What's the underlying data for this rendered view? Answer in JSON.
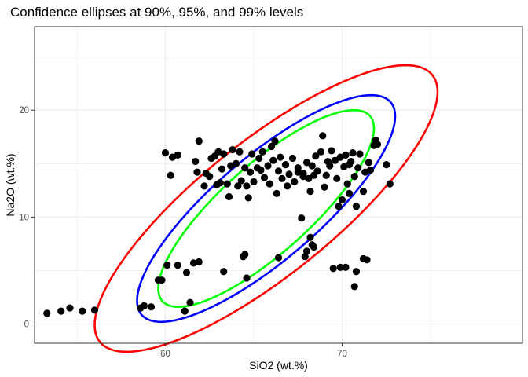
{
  "chart_data": {
    "type": "scatter",
    "title": "Confidence ellipses at 90%, 95%, and 99% levels",
    "xlabel": "SiO2 (wt.%)",
    "ylabel": "Na2O (wt.%)",
    "xlim": [
      52.6,
      80.2
    ],
    "ylim": [
      -1.8,
      27.8
    ],
    "xticks": [
      60,
      70
    ],
    "yticks": [
      0,
      10,
      20
    ],
    "major_x": [
      60,
      70
    ],
    "minor_x": [
      55,
      65,
      75
    ],
    "major_y": [
      0,
      10,
      20
    ],
    "minor_y": [
      5,
      15,
      25
    ],
    "grid": true,
    "legend": "none",
    "colors": {
      "point": "#000000",
      "e90": "#00ff00",
      "e95": "#0000ff",
      "e99": "#ff0000"
    },
    "ellipses": [
      {
        "level": 0.9,
        "color": "#00ff00",
        "center": [
          65.7,
          10.8
        ],
        "x_range": [
          59.6,
          71.8
        ],
        "y_range": [
          3.3,
          21.7
        ]
      },
      {
        "level": 0.95,
        "color": "#0000ff",
        "center": [
          65.7,
          10.8
        ],
        "x_range": [
          58.4,
          73.0
        ],
        "y_range": [
          1.9,
          23.1
        ]
      },
      {
        "level": 0.99,
        "color": "#ff0000",
        "center": [
          65.7,
          10.8
        ],
        "x_range": [
          56.0,
          75.4
        ],
        "y_range": [
          -0.9,
          25.9
        ]
      }
    ],
    "points": [
      [
        53.3,
        1.0
      ],
      [
        54.1,
        1.2
      ],
      [
        54.6,
        1.5
      ],
      [
        55.3,
        1.2
      ],
      [
        56.0,
        1.3
      ],
      [
        58.6,
        1.5
      ],
      [
        58.8,
        1.7
      ],
      [
        59.2,
        1.6
      ],
      [
        59.6,
        4.1
      ],
      [
        59.8,
        4.1
      ],
      [
        60.1,
        5.5
      ],
      [
        60.7,
        5.5
      ],
      [
        61.2,
        4.8
      ],
      [
        61.6,
        5.7
      ],
      [
        61.9,
        5.8
      ],
      [
        61.1,
        1.2
      ],
      [
        61.4,
        2.0
      ],
      [
        60.0,
        16.0
      ],
      [
        60.4,
        15.6
      ],
      [
        60.7,
        15.8
      ],
      [
        60.3,
        13.9
      ],
      [
        61.9,
        17.1
      ],
      [
        61.7,
        15.2
      ],
      [
        61.8,
        14.2
      ],
      [
        62.2,
        12.9
      ],
      [
        62.3,
        14.1
      ],
      [
        62.5,
        13.8
      ],
      [
        62.6,
        15.5
      ],
      [
        62.8,
        15.7
      ],
      [
        62.9,
        13.0
      ],
      [
        63.0,
        16.1
      ],
      [
        63.1,
        13.2
      ],
      [
        63.2,
        14.5
      ],
      [
        63.3,
        15.9
      ],
      [
        63.5,
        13.1
      ],
      [
        63.6,
        11.9
      ],
      [
        63.7,
        14.8
      ],
      [
        63.8,
        16.3
      ],
      [
        64.1,
        12.9
      ],
      [
        64.0,
        15.0
      ],
      [
        64.2,
        16.1
      ],
      [
        64.3,
        13.4
      ],
      [
        64.5,
        14.6
      ],
      [
        64.6,
        12.9
      ],
      [
        64.7,
        11.8
      ],
      [
        64.8,
        14.2
      ],
      [
        64.9,
        15.9
      ],
      [
        65.0,
        13.3
      ],
      [
        65.2,
        14.6
      ],
      [
        65.3,
        15.5
      ],
      [
        65.4,
        14.4
      ],
      [
        65.5,
        16.1
      ],
      [
        65.6,
        13.7
      ],
      [
        65.8,
        14.8
      ],
      [
        65.9,
        13.1
      ],
      [
        66.0,
        16.6
      ],
      [
        66.1,
        15.3
      ],
      [
        66.2,
        17.1
      ],
      [
        66.3,
        12.2
      ],
      [
        66.4,
        14.3
      ],
      [
        66.5,
        15.6
      ],
      [
        66.6,
        13.6
      ],
      [
        66.8,
        14.9
      ],
      [
        66.9,
        12.9
      ],
      [
        67.0,
        14.0
      ],
      [
        67.2,
        15.5
      ],
      [
        67.3,
        13.3
      ],
      [
        67.5,
        14.2
      ],
      [
        67.8,
        13.8
      ],
      [
        68.0,
        15.1
      ],
      [
        68.2,
        12.4
      ],
      [
        68.4,
        13.9
      ],
      [
        68.5,
        15.7
      ],
      [
        68.6,
        14.3
      ],
      [
        68.8,
        16.1
      ],
      [
        68.9,
        17.6
      ],
      [
        69.0,
        12.8
      ],
      [
        69.1,
        13.9
      ],
      [
        69.3,
        14.8
      ],
      [
        69.4,
        16.2
      ],
      [
        69.6,
        15.3
      ],
      [
        69.7,
        13.6
      ],
      [
        69.8,
        11.0
      ],
      [
        69.9,
        15.6
      ],
      [
        70.0,
        11.6
      ],
      [
        70.1,
        14.7
      ],
      [
        70.2,
        15.8
      ],
      [
        70.3,
        13.1
      ],
      [
        70.4,
        12.2
      ],
      [
        70.5,
        15.2
      ],
      [
        70.6,
        16.0
      ],
      [
        70.7,
        13.8
      ],
      [
        70.8,
        11.0
      ],
      [
        70.9,
        14.6
      ],
      [
        71.0,
        15.9
      ],
      [
        71.2,
        12.4
      ],
      [
        71.3,
        14.2
      ],
      [
        71.5,
        15.1
      ],
      [
        71.6,
        14.4
      ],
      [
        71.8,
        16.7
      ],
      [
        71.9,
        17.2
      ],
      [
        72.0,
        16.8
      ],
      [
        72.5,
        14.9
      ],
      [
        72.7,
        13.1
      ],
      [
        67.5,
        14.6
      ],
      [
        67.8,
        14.1
      ],
      [
        68.1,
        13.6
      ],
      [
        68.3,
        14.8
      ],
      [
        70.4,
        14.9
      ],
      [
        69.2,
        15.2
      ],
      [
        67.7,
        9.9
      ],
      [
        68.0,
        6.8
      ],
      [
        68.2,
        8.1
      ],
      [
        68.4,
        7.2
      ],
      [
        68.3,
        7.4
      ],
      [
        67.9,
        6.3
      ],
      [
        66.4,
        6.2
      ],
      [
        64.6,
        4.3
      ],
      [
        64.4,
        6.3
      ],
      [
        64.5,
        6.5
      ],
      [
        63.3,
        4.9
      ],
      [
        69.5,
        5.2
      ],
      [
        69.9,
        5.3
      ],
      [
        70.2,
        5.3
      ],
      [
        70.8,
        4.9
      ],
      [
        70.7,
        3.5
      ],
      [
        71.2,
        6.1
      ],
      [
        71.4,
        6.0
      ]
    ]
  }
}
